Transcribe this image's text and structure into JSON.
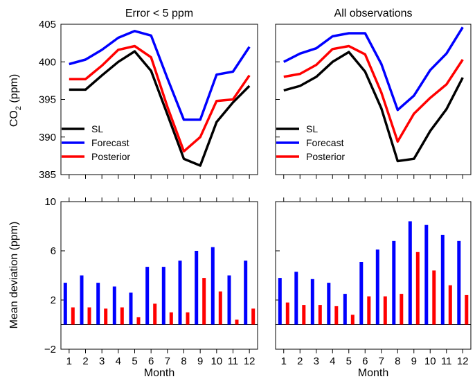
{
  "figure": {
    "ylabel_top_prefix": "CO",
    "ylabel_top_sub": "2",
    "ylabel_top_suffix": " (ppm)",
    "ylabel_bottom": "Mean deviation (ppm)",
    "xlabel": "Month"
  },
  "colors": {
    "SL": "#000000",
    "Forecast": "#0000ff",
    "Posterior": "#ff0000"
  },
  "chart_data": [
    {
      "type": "line",
      "panel": "top-left",
      "title": "Error < 5 ppm",
      "x": [
        1,
        2,
        3,
        4,
        5,
        6,
        7,
        8,
        9,
        10,
        11,
        12
      ],
      "xlim": [
        0.5,
        12.5
      ],
      "ylim": [
        385,
        405
      ],
      "yticks": [
        385,
        390,
        395,
        400,
        405
      ],
      "ylabel": "CO2 (ppm)",
      "legend_position": "lower-left",
      "series": [
        {
          "name": "SL",
          "values": [
            396.3,
            396.3,
            398.2,
            400.0,
            401.4,
            398.8,
            393.0,
            387.1,
            386.2,
            392.0,
            394.6,
            396.8
          ]
        },
        {
          "name": "Forecast",
          "values": [
            399.7,
            400.3,
            401.6,
            403.2,
            404.1,
            403.5,
            397.8,
            392.3,
            392.3,
            398.3,
            398.7,
            402.0
          ]
        },
        {
          "name": "Posterior",
          "values": [
            397.7,
            397.7,
            399.5,
            401.6,
            402.1,
            400.6,
            394.0,
            388.1,
            390.0,
            394.8,
            395.0,
            398.2
          ]
        }
      ]
    },
    {
      "type": "line",
      "panel": "top-right",
      "title": "All observations",
      "x": [
        1,
        2,
        3,
        4,
        5,
        6,
        7,
        8,
        9,
        10,
        11,
        12
      ],
      "xlim": [
        0.5,
        12.5
      ],
      "ylim": [
        385,
        405
      ],
      "yticks": [
        385,
        390,
        395,
        400,
        405
      ],
      "legend_position": "lower-left",
      "series": [
        {
          "name": "SL",
          "values": [
            396.2,
            396.8,
            398.0,
            400.0,
            401.3,
            398.7,
            393.8,
            386.8,
            387.1,
            390.8,
            393.7,
            397.9
          ]
        },
        {
          "name": "Forecast",
          "values": [
            400.0,
            401.1,
            401.8,
            403.4,
            403.8,
            403.8,
            399.7,
            393.6,
            395.5,
            398.9,
            401.1,
            404.6
          ]
        },
        {
          "name": "Posterior",
          "values": [
            398.0,
            398.4,
            399.6,
            401.7,
            402.1,
            401.0,
            395.9,
            389.4,
            393.1,
            395.2,
            397.0,
            400.3
          ]
        }
      ]
    },
    {
      "type": "bar",
      "panel": "bottom-left",
      "categories": [
        "1",
        "2",
        "3",
        "4",
        "5",
        "6",
        "7",
        "8",
        "9",
        "10",
        "11",
        "12"
      ],
      "ylim": [
        -2,
        10
      ],
      "yticks": [
        -2,
        2,
        6,
        10
      ],
      "ylabel": "Mean deviation (ppm)",
      "xlabel": "Month",
      "series": [
        {
          "name": "Forecast",
          "values": [
            3.4,
            4.0,
            3.4,
            3.1,
            2.6,
            4.7,
            4.7,
            5.2,
            6.0,
            6.3,
            4.0,
            5.2
          ]
        },
        {
          "name": "Posterior",
          "values": [
            1.4,
            1.4,
            1.3,
            1.4,
            0.6,
            1.7,
            1.0,
            1.0,
            3.8,
            2.7,
            0.4,
            1.3
          ]
        }
      ]
    },
    {
      "type": "bar",
      "panel": "bottom-right",
      "categories": [
        "1",
        "2",
        "3",
        "4",
        "5",
        "6",
        "7",
        "8",
        "9",
        "10",
        "11",
        "12"
      ],
      "ylim": [
        -2,
        10
      ],
      "yticks": [
        -2,
        2,
        6,
        10
      ],
      "xlabel": "Month",
      "series": [
        {
          "name": "Forecast",
          "values": [
            3.8,
            4.3,
            3.7,
            3.4,
            2.5,
            5.1,
            6.1,
            6.8,
            8.4,
            8.1,
            7.3,
            6.8
          ]
        },
        {
          "name": "Posterior",
          "values": [
            1.8,
            1.6,
            1.6,
            1.5,
            0.8,
            2.3,
            2.3,
            2.5,
            5.9,
            4.4,
            3.2,
            2.4
          ]
        }
      ]
    }
  ]
}
